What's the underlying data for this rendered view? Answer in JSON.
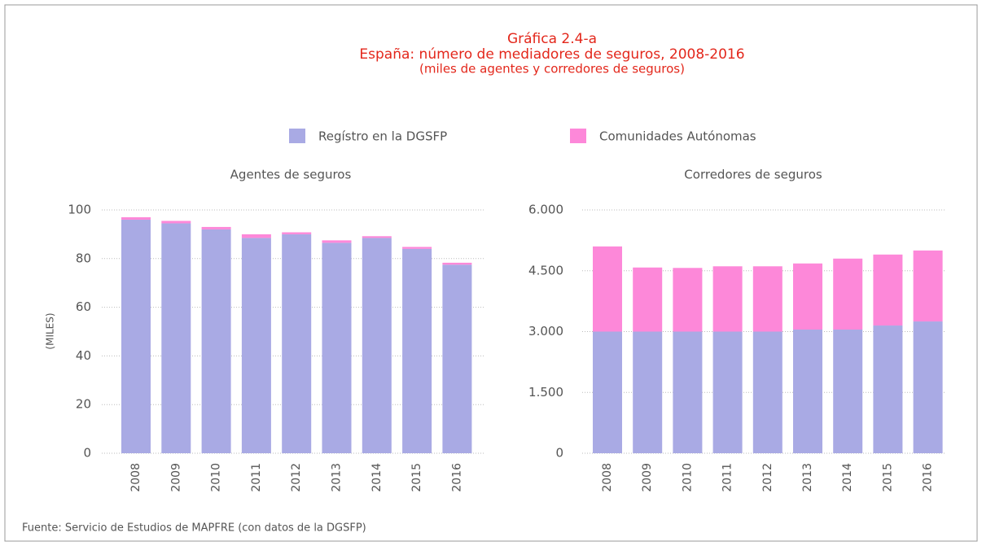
{
  "title": "Gráfica 2.4-a",
  "subtitle": "España: número de mediadores de seguros, 2008-2016",
  "note": "(miles de agentes y corredores de seguros)",
  "legend": [
    {
      "name": "Regístro en la DGSFP",
      "color": "#a9aae4"
    },
    {
      "name": "Comunidades Autónomas",
      "color": "#fd88d9"
    }
  ],
  "source": "Fuente: Servicio de Estudios de MAPFRE (con datos de la DGSFP)",
  "chart_data": [
    {
      "type": "stacked_bar",
      "title": "Agentes de seguros",
      "y_label": "(MILES)",
      "categories": [
        "2008",
        "2009",
        "2010",
        "2011",
        "2012",
        "2013",
        "2014",
        "2015",
        "2016"
      ],
      "series": [
        {
          "color": "#a9aae4",
          "values": [
            96,
            94.5,
            92,
            88.5,
            90,
            86.5,
            88.5,
            84,
            77.5
          ]
        },
        {
          "color": "#fd88d9",
          "values": [
            1,
            1,
            1,
            1.5,
            0.8,
            1,
            0.7,
            0.8,
            0.8
          ]
        }
      ],
      "ylim": [
        0,
        100
      ],
      "yticks": [
        0,
        20,
        40,
        60,
        80,
        100
      ],
      "grid": true
    },
    {
      "type": "stacked_bar",
      "title": "Corredores de seguros",
      "categories": [
        "2008",
        "2009",
        "2010",
        "2011",
        "2012",
        "2013",
        "2014",
        "2015",
        "2016"
      ],
      "series": [
        {
          "color": "#a9aae4",
          "values": [
            3000,
            3000,
            3000,
            3000,
            3000,
            3050,
            3050,
            3150,
            3250
          ]
        },
        {
          "color": "#fd88d9",
          "values": [
            2100,
            1580,
            1570,
            1610,
            1610,
            1630,
            1750,
            1750,
            1750
          ]
        }
      ],
      "ylim": [
        0,
        6000
      ],
      "yticks": [
        0,
        {
          "value": 1500,
          "label": "1.500"
        },
        {
          "value": 3000,
          "label": "3.000"
        },
        {
          "value": 4500,
          "label": "4.500"
        },
        {
          "value": 6000,
          "label": "6.000"
        }
      ],
      "grid": true
    }
  ]
}
